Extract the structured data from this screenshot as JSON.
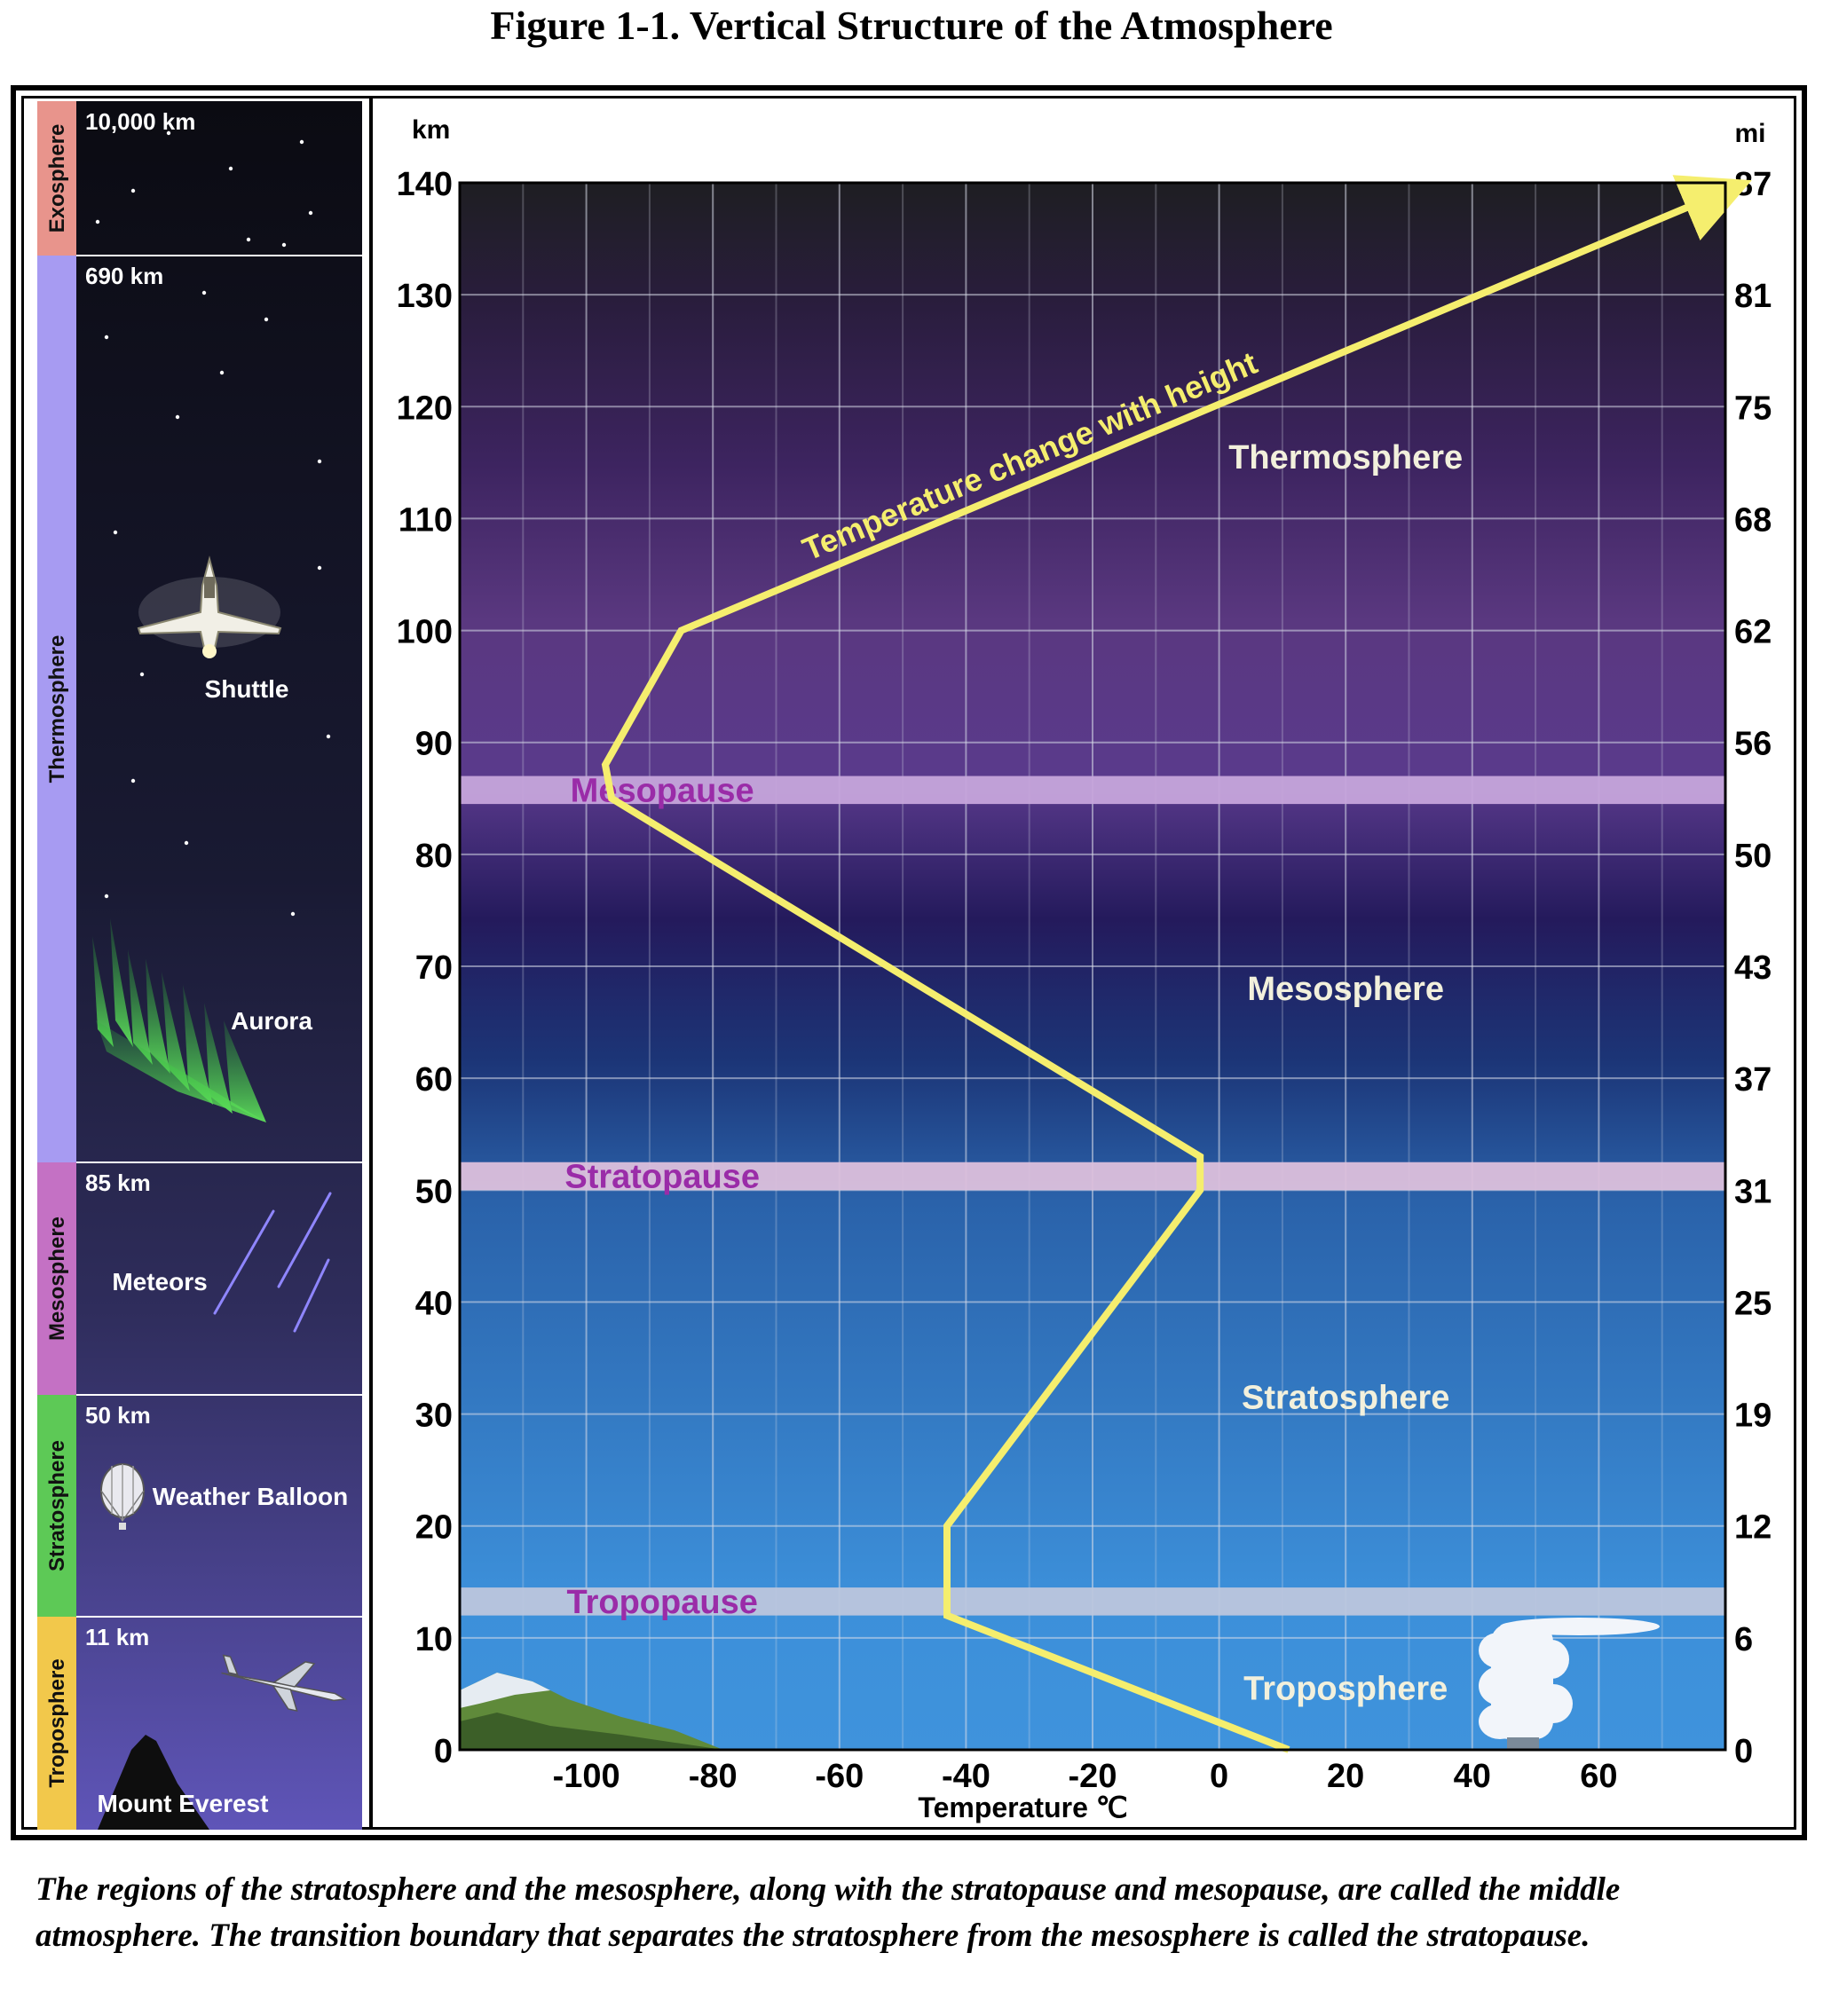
{
  "figure_title": "Figure 1-1. Vertical Structure of the Atmosphere",
  "caption": "The regions of the stratosphere and the mesosphere, along with the stratopause and mesopause, are called the middle atmosphere. The transition boundary that separates the stratosphere from the mesosphere is called the stratopause.",
  "left_panel": {
    "layers": [
      {
        "name": "Exosphere",
        "altitude": "10,000 km",
        "color": "#e8948c"
      },
      {
        "name": "Thermosphere",
        "altitude": "690 km",
        "color": "#a79bf2"
      },
      {
        "name": "Mesosphere",
        "altitude": "85 km",
        "color": "#c471c4"
      },
      {
        "name": "Stratosphere",
        "altitude": "50 km",
        "color": "#5dc956"
      },
      {
        "name": "Troposphere",
        "altitude": "11 km",
        "color": "#f2c84b"
      }
    ],
    "labels": {
      "shuttle": "Shuttle",
      "aurora": "Aurora",
      "meteors": "Meteors",
      "weather_balloon": "Weather Balloon",
      "mount_everest": "Mount Everest"
    },
    "icons": [
      "star-icon",
      "shuttle-icon",
      "aurora-icon",
      "meteor-icon",
      "balloon-icon",
      "airplane-icon",
      "mountain-icon"
    ]
  },
  "chart_data": {
    "type": "line",
    "xlabel": "Temperature ℃",
    "ylabel_left": "km",
    "ylabel_right": "mi",
    "xlim": [
      -120,
      80
    ],
    "ylim": [
      0,
      140
    ],
    "x_ticks": [
      -100,
      -80,
      -60,
      -40,
      -20,
      0,
      20,
      40,
      60
    ],
    "y_ticks_km": [
      0,
      10,
      20,
      30,
      40,
      50,
      60,
      70,
      80,
      90,
      100,
      110,
      120,
      130,
      140
    ],
    "y_ticks_mi": [
      "0",
      "6",
      "12",
      "19",
      "25",
      "31",
      "37",
      "43",
      "50",
      "56",
      "62",
      "68",
      "75",
      "81",
      "87"
    ],
    "grid": true,
    "series": [
      {
        "name": "Temperature change with height",
        "color": "#f5ee6e",
        "points": [
          {
            "x": 11,
            "y": 0
          },
          {
            "x": -43,
            "y": 12
          },
          {
            "x": -43,
            "y": 20
          },
          {
            "x": -3,
            "y": 50
          },
          {
            "x": -3,
            "y": 53
          },
          {
            "x": -96,
            "y": 85
          },
          {
            "x": -97,
            "y": 88
          },
          {
            "x": -85,
            "y": 100
          },
          {
            "x": 79,
            "y": 139
          }
        ]
      }
    ],
    "boundaries": [
      {
        "name": "Tropopause",
        "y_range": [
          12,
          14.5
        ]
      },
      {
        "name": "Stratopause",
        "y_range": [
          50,
          52.5
        ]
      },
      {
        "name": "Mesopause",
        "y_range": [
          84.5,
          87
        ]
      }
    ],
    "regions": [
      {
        "name": "Troposphere",
        "label_y": 5.5
      },
      {
        "name": "Stratosphere",
        "label_y": 31.5
      },
      {
        "name": "Mesosphere",
        "label_y": 68
      },
      {
        "name": "Thermosphere",
        "label_y": 115.5
      }
    ]
  }
}
